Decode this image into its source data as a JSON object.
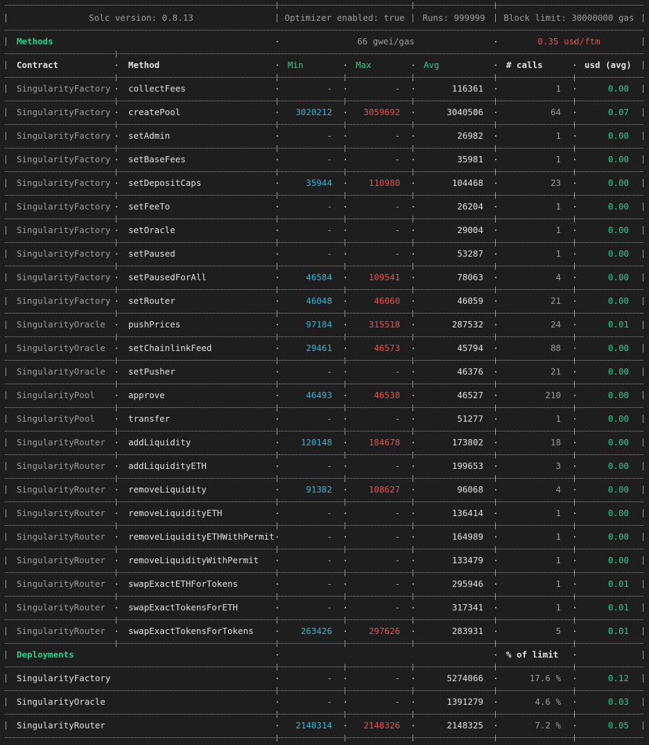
{
  "colors": {
    "green": "#23d18b",
    "cyan": "#29b8db",
    "red": "#f14c4c",
    "gray": "#9d9d9d",
    "white": "#e0e0e0"
  },
  "info": {
    "solc": "Solc version: 0.8.13",
    "optimizer": "Optimizer enabled: true",
    "runs": "Runs: 999999",
    "block_limit": "Block limit: 30000000 gas"
  },
  "methods_header": {
    "title": "Methods",
    "gas_price": "66 gwei/gas",
    "token_price": "0.35 usd/ftm"
  },
  "columns": {
    "contract": "Contract",
    "method": "Method",
    "min": "Min",
    "max": "Max",
    "avg": "Avg",
    "calls": "# calls",
    "usd": "usd (avg)"
  },
  "methods": [
    {
      "contract": "SingularityFactory",
      "method": "collectFees",
      "min": "-",
      "max": "-",
      "avg": "116361",
      "calls": "1",
      "usd": "0.00"
    },
    {
      "contract": "SingularityFactory",
      "method": "createPool",
      "min": "3020212",
      "max": "3059692",
      "avg": "3040506",
      "calls": "64",
      "usd": "0.07"
    },
    {
      "contract": "SingularityFactory",
      "method": "setAdmin",
      "min": "-",
      "max": "-",
      "avg": "26982",
      "calls": "1",
      "usd": "0.00"
    },
    {
      "contract": "SingularityFactory",
      "method": "setBaseFees",
      "min": "-",
      "max": "-",
      "avg": "35981",
      "calls": "1",
      "usd": "0.00"
    },
    {
      "contract": "SingularityFactory",
      "method": "setDepositCaps",
      "min": "35944",
      "max": "110980",
      "avg": "104468",
      "calls": "23",
      "usd": "0.00"
    },
    {
      "contract": "SingularityFactory",
      "method": "setFeeTo",
      "min": "-",
      "max": "-",
      "avg": "26204",
      "calls": "1",
      "usd": "0.00"
    },
    {
      "contract": "SingularityFactory",
      "method": "setOracle",
      "min": "-",
      "max": "-",
      "avg": "29004",
      "calls": "1",
      "usd": "0.00"
    },
    {
      "contract": "SingularityFactory",
      "method": "setPaused",
      "min": "-",
      "max": "-",
      "avg": "53287",
      "calls": "1",
      "usd": "0.00"
    },
    {
      "contract": "SingularityFactory",
      "method": "setPausedForAll",
      "min": "46584",
      "max": "109541",
      "avg": "78063",
      "calls": "4",
      "usd": "0.00"
    },
    {
      "contract": "SingularityFactory",
      "method": "setRouter",
      "min": "46048",
      "max": "46060",
      "avg": "46059",
      "calls": "21",
      "usd": "0.00"
    },
    {
      "contract": "SingularityOracle",
      "method": "pushPrices",
      "min": "97184",
      "max": "315518",
      "avg": "287532",
      "calls": "24",
      "usd": "0.01"
    },
    {
      "contract": "SingularityOracle",
      "method": "setChainlinkFeed",
      "min": "29461",
      "max": "46573",
      "avg": "45794",
      "calls": "88",
      "usd": "0.00"
    },
    {
      "contract": "SingularityOracle",
      "method": "setPusher",
      "min": "-",
      "max": "-",
      "avg": "46376",
      "calls": "21",
      "usd": "0.00"
    },
    {
      "contract": "SingularityPool",
      "method": "approve",
      "min": "46493",
      "max": "46538",
      "avg": "46527",
      "calls": "210",
      "usd": "0.00"
    },
    {
      "contract": "SingularityPool",
      "method": "transfer",
      "min": "-",
      "max": "-",
      "avg": "51277",
      "calls": "1",
      "usd": "0.00"
    },
    {
      "contract": "SingularityRouter",
      "method": "addLiquidity",
      "min": "120148",
      "max": "184678",
      "avg": "173802",
      "calls": "18",
      "usd": "0.00"
    },
    {
      "contract": "SingularityRouter",
      "method": "addLiquidityETH",
      "min": "-",
      "max": "-",
      "avg": "199653",
      "calls": "3",
      "usd": "0.00"
    },
    {
      "contract": "SingularityRouter",
      "method": "removeLiquidity",
      "min": "91382",
      "max": "108627",
      "avg": "96068",
      "calls": "4",
      "usd": "0.00"
    },
    {
      "contract": "SingularityRouter",
      "method": "removeLiquidityETH",
      "min": "-",
      "max": "-",
      "avg": "136414",
      "calls": "1",
      "usd": "0.00"
    },
    {
      "contract": "SingularityRouter",
      "method": "removeLiquidityETHWithPermit",
      "min": "-",
      "max": "-",
      "avg": "164989",
      "calls": "1",
      "usd": "0.00"
    },
    {
      "contract": "SingularityRouter",
      "method": "removeLiquidityWithPermit",
      "min": "-",
      "max": "-",
      "avg": "133479",
      "calls": "1",
      "usd": "0.00"
    },
    {
      "contract": "SingularityRouter",
      "method": "swapExactETHForTokens",
      "min": "-",
      "max": "-",
      "avg": "295946",
      "calls": "1",
      "usd": "0.01"
    },
    {
      "contract": "SingularityRouter",
      "method": "swapExactTokensForETH",
      "min": "-",
      "max": "-",
      "avg": "317341",
      "calls": "1",
      "usd": "0.01"
    },
    {
      "contract": "SingularityRouter",
      "method": "swapExactTokensForTokens",
      "min": "263426",
      "max": "297626",
      "avg": "283931",
      "calls": "5",
      "usd": "0.01"
    }
  ],
  "deployments_header": {
    "title": "Deployments",
    "limit_label": "% of limit"
  },
  "deployments": [
    {
      "contract": "SingularityFactory",
      "min": "-",
      "max": "-",
      "avg": "5274066",
      "limit": "17.6 %",
      "usd": "0.12"
    },
    {
      "contract": "SingularityOracle",
      "min": "-",
      "max": "-",
      "avg": "1391279",
      "limit": "4.6 %",
      "usd": "0.03"
    },
    {
      "contract": "SingularityRouter",
      "min": "2148314",
      "max": "2148326",
      "avg": "2148325",
      "limit": "7.2 %",
      "usd": "0.05"
    }
  ]
}
